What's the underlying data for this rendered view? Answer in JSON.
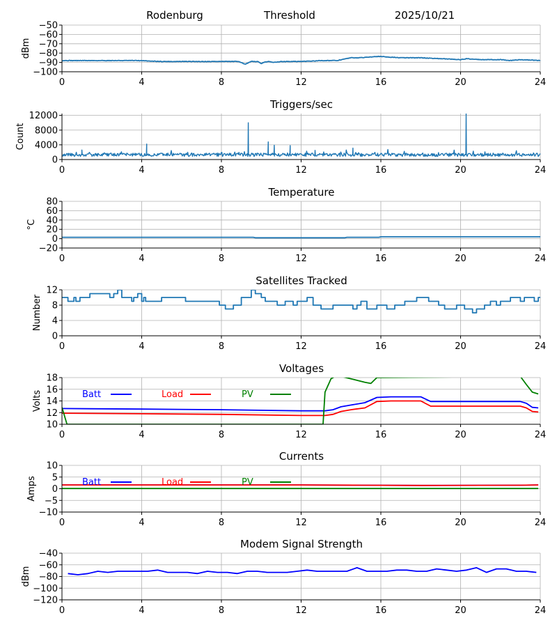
{
  "header": {
    "station": "Rodenburg",
    "subtitle": "Threshold",
    "date": "2025/10/21"
  },
  "colors": {
    "default": "#1f77b4",
    "batt": "#0000ff",
    "load": "#ff0000",
    "pv": "#008000",
    "grid": "#b0b0b0"
  },
  "chart_data": [
    {
      "type": "line",
      "title": "",
      "ylabel": "dBm",
      "xlim": [
        0,
        24
      ],
      "xticks": [
        0,
        4,
        8,
        12,
        16,
        20,
        24
      ],
      "ylim": [
        -100,
        -50
      ],
      "yticks": [
        -100,
        -90,
        -80,
        -70,
        -60,
        -50
      ],
      "series": [
        {
          "name": "Threshold",
          "color": "#1f77b4",
          "noise": 0.3,
          "x": [
            0,
            2,
            3.8,
            5,
            7,
            8,
            8.9,
            9.2,
            9.5,
            9.8,
            10,
            10.3,
            10.6,
            11,
            12,
            13,
            13.8,
            14.5,
            15,
            15.5,
            15.8,
            16.2,
            17,
            18,
            19,
            19.5,
            20,
            20.3,
            21,
            22,
            22.5,
            23,
            23.5,
            24
          ],
          "y": [
            -88,
            -88,
            -88,
            -89,
            -89,
            -89,
            -89,
            -92,
            -89,
            -89,
            -91,
            -89,
            -90,
            -89,
            -89,
            -88,
            -88,
            -85,
            -85,
            -84,
            -83.5,
            -84,
            -85,
            -85,
            -86,
            -86.5,
            -87,
            -86,
            -87,
            -87,
            -88,
            -87,
            -87.5,
            -88
          ]
        }
      ]
    },
    {
      "type": "line",
      "title": "Triggers/sec",
      "ylabel": "Count",
      "xlim": [
        0,
        24
      ],
      "xticks": [
        0,
        4,
        8,
        12,
        16,
        20,
        24
      ],
      "ylim": [
        0,
        12500
      ],
      "yticks": [
        0,
        4000,
        8000,
        12000
      ],
      "series": [
        {
          "name": "Triggers",
          "color": "#1f77b4",
          "baseline": 1300,
          "noise_amp": 900,
          "n": 700,
          "spikes": [
            [
              9.35,
              10000
            ],
            [
              20.28,
              12500
            ],
            [
              4.25,
              4200
            ],
            [
              10.35,
              4800
            ],
            [
              10.65,
              3900
            ],
            [
              11.45,
              3800
            ],
            [
              14.6,
              3100
            ],
            [
              1.0,
              2600
            ],
            [
              12.7,
              2500
            ]
          ]
        }
      ]
    },
    {
      "type": "line",
      "title": "Temperature",
      "ylabel": "°C",
      "xlim": [
        0,
        24
      ],
      "xticks": [
        0,
        4,
        8,
        12,
        16,
        20,
        24
      ],
      "ylim": [
        -20,
        80
      ],
      "yticks": [
        -20,
        0,
        20,
        40,
        60,
        80
      ],
      "series": [
        {
          "name": "Temperature",
          "color": "#1f77b4",
          "x": [
            0,
            9.6,
            9.7,
            14.2,
            14.3,
            15.9,
            16.0,
            24
          ],
          "y": [
            3,
            3,
            2,
            2,
            3,
            3,
            4,
            4
          ]
        }
      ]
    },
    {
      "type": "line",
      "title": "Satellites Tracked",
      "ylabel": "Number",
      "xlim": [
        0,
        24
      ],
      "xticks": [
        0,
        4,
        8,
        12,
        16,
        20,
        24
      ],
      "ylim": [
        0,
        12
      ],
      "yticks": [
        0,
        4,
        8,
        12
      ],
      "series": [
        {
          "name": "Satellites",
          "color": "#1f77b4",
          "step": true,
          "x": [
            0,
            0.3,
            0.6,
            0.7,
            0.9,
            1.4,
            2.4,
            2.6,
            2.8,
            3.0,
            3.5,
            3.6,
            3.8,
            4.0,
            4.1,
            4.2,
            4.7,
            5.0,
            5.5,
            6.0,
            6.2,
            6.8,
            7.3,
            7.9,
            8.2,
            8.6,
            9.0,
            9.5,
            9.7,
            10.0,
            10.2,
            10.4,
            10.8,
            11.2,
            11.6,
            11.8,
            12.3,
            12.6,
            13.0,
            13.6,
            14.0,
            14.6,
            14.8,
            15.0,
            15.3,
            15.8,
            16.3,
            16.7,
            17.2,
            17.8,
            18.4,
            18.9,
            19.2,
            19.8,
            20.0,
            20.2,
            20.6,
            20.8,
            21.2,
            21.5,
            21.8,
            22.0,
            22.5,
            23.0,
            23.2,
            23.7,
            23.9,
            24
          ],
          "y": [
            10,
            9,
            10,
            9,
            10,
            11,
            10,
            11,
            12,
            10,
            9,
            10,
            11,
            9,
            10,
            9,
            9,
            10,
            10,
            10,
            9,
            9,
            9,
            8,
            7,
            8,
            10,
            12,
            11,
            10,
            9,
            9,
            8,
            9,
            8,
            9,
            10,
            8,
            7,
            8,
            8,
            7,
            8,
            9,
            7,
            8,
            7,
            8,
            9,
            10,
            9,
            8,
            7,
            8,
            8,
            7,
            6,
            7,
            8,
            9,
            8,
            9,
            10,
            9,
            10,
            9,
            10,
            10
          ]
        }
      ]
    },
    {
      "type": "line",
      "title": "Voltages",
      "ylabel": "Volts",
      "xlim": [
        0,
        24
      ],
      "xticks": [
        0,
        4,
        8,
        12,
        16,
        20,
        24
      ],
      "ylim": [
        10,
        18
      ],
      "yticks": [
        10,
        12,
        14,
        16,
        18
      ],
      "legend": [
        {
          "label": "Batt",
          "color": "#0000ff"
        },
        {
          "label": "Load",
          "color": "#ff0000"
        },
        {
          "label": "PV",
          "color": "#008000"
        }
      ],
      "series": [
        {
          "name": "Batt",
          "color": "#0000ff",
          "x": [
            0,
            4,
            8,
            12,
            13.2,
            13.6,
            14.0,
            14.5,
            15.2,
            15.8,
            16.5,
            18.0,
            18.5,
            20,
            22,
            23,
            23.3,
            23.6,
            23.9
          ],
          "y": [
            12.7,
            12.6,
            12.5,
            12.3,
            12.3,
            12.5,
            13.0,
            13.3,
            13.7,
            14.6,
            14.7,
            14.7,
            13.9,
            13.9,
            13.9,
            13.9,
            13.6,
            12.9,
            12.8
          ]
        },
        {
          "name": "Load",
          "color": "#ff0000",
          "x": [
            0,
            4,
            8,
            12,
            13.2,
            13.6,
            14.0,
            14.5,
            15.2,
            15.8,
            16.5,
            18.0,
            18.5,
            20,
            22,
            23,
            23.3,
            23.6,
            23.9
          ],
          "y": [
            11.9,
            11.8,
            11.7,
            11.5,
            11.5,
            11.7,
            12.2,
            12.5,
            12.8,
            13.9,
            14.0,
            14.0,
            13.1,
            13.1,
            13.1,
            13.1,
            12.8,
            12.2,
            12.1
          ]
        },
        {
          "name": "PV",
          "color": "#008000",
          "x": [
            0,
            0.25,
            13.1,
            13.2,
            13.5,
            13.7,
            14.0,
            14.5,
            15.2,
            15.5,
            15.8,
            23.0,
            23.3,
            23.6,
            23.9
          ],
          "y": [
            12.9,
            10,
            10,
            15.5,
            17.8,
            18.2,
            18.2,
            17.8,
            17.2,
            17.0,
            18.0,
            18.2,
            16.8,
            15.5,
            15.2
          ]
        }
      ]
    },
    {
      "type": "line",
      "title": "Currents",
      "ylabel": "Amps",
      "xlim": [
        0,
        24
      ],
      "xticks": [
        0,
        4,
        8,
        12,
        16,
        20,
        24
      ],
      "ylim": [
        -10,
        10
      ],
      "yticks": [
        -10,
        -5,
        0,
        5,
        10
      ],
      "legend": [
        {
          "label": "Batt",
          "color": "#0000ff"
        },
        {
          "label": "Load",
          "color": "#ff0000"
        },
        {
          "label": "PV",
          "color": "#008000"
        }
      ],
      "series": [
        {
          "name": "Batt",
          "color": "#0000ff",
          "x": [
            0,
            12,
            15,
            18,
            23,
            23.9
          ],
          "y": [
            1.6,
            1.6,
            1.5,
            1.4,
            1.5,
            1.6
          ]
        },
        {
          "name": "Load",
          "color": "#ff0000",
          "x": [
            0,
            12,
            15,
            18,
            23,
            23.9
          ],
          "y": [
            1.6,
            1.6,
            1.5,
            1.4,
            1.5,
            1.6
          ]
        },
        {
          "name": "PV",
          "color": "#008000",
          "x": [
            0,
            23.9
          ],
          "y": [
            0.1,
            0.1
          ]
        }
      ]
    },
    {
      "type": "line",
      "title": "Modem Signal Strength",
      "ylabel": "dBm",
      "xlim": [
        0,
        24
      ],
      "xticks": [
        0,
        4,
        8,
        12,
        16,
        20,
        24
      ],
      "ylim": [
        -120,
        -40
      ],
      "yticks": [
        -120,
        -100,
        -80,
        -60,
        -40
      ],
      "series": [
        {
          "name": "Signal",
          "color": "#0000ff",
          "x": [
            0.3,
            0.8,
            1.3,
            1.8,
            2.3,
            2.8,
            3.3,
            3.8,
            4.3,
            4.8,
            5.3,
            5.8,
            6.3,
            6.8,
            7.3,
            7.8,
            8.3,
            8.8,
            9.3,
            9.8,
            10.3,
            10.8,
            11.3,
            11.8,
            12.3,
            12.8,
            13.3,
            13.8,
            14.3,
            14.8,
            15.3,
            15.8,
            16.3,
            16.8,
            17.3,
            17.8,
            18.3,
            18.8,
            19.3,
            19.8,
            20.3,
            20.8,
            21.3,
            21.8,
            22.3,
            22.8,
            23.3,
            23.8
          ],
          "y": [
            -75,
            -77,
            -75,
            -71,
            -73,
            -71,
            -71,
            -71,
            -71,
            -69,
            -73,
            -73,
            -73,
            -75,
            -71,
            -73,
            -73,
            -75,
            -71,
            -71,
            -73,
            -73,
            -73,
            -71,
            -69,
            -71,
            -71,
            -71,
            -71,
            -65,
            -71,
            -71,
            -71,
            -69,
            -69,
            -71,
            -71,
            -67,
            -69,
            -71,
            -69,
            -65,
            -73,
            -67,
            -67,
            -71,
            -71,
            -73
          ]
        }
      ]
    }
  ]
}
